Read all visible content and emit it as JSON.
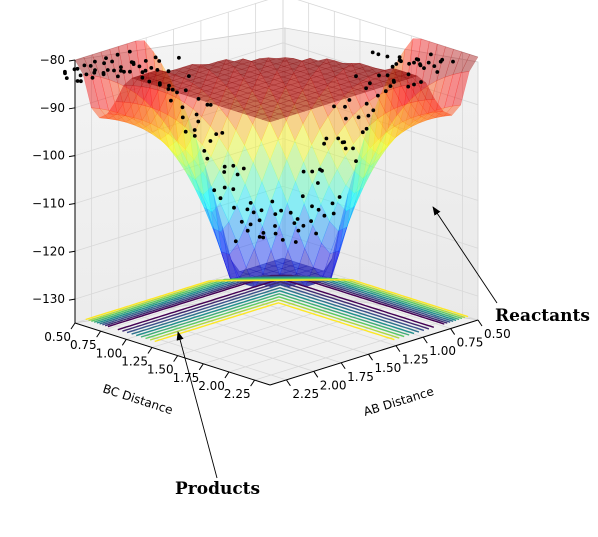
{
  "chart_data": {
    "type": "surface3d",
    "title": "",
    "xlabel": "AB Distance",
    "ylabel": "BC Distance",
    "zlabel": "",
    "x_ticks": [
      "0.50",
      "0.75",
      "1.00",
      "1.25",
      "1.50",
      "1.75",
      "2.00",
      "2.25"
    ],
    "y_ticks": [
      "0.50",
      "0.75",
      "1.00",
      "1.25",
      "1.50",
      "1.75",
      "2.00",
      "2.25"
    ],
    "z_ticks": [
      "−80",
      "−90",
      "−100",
      "−110",
      "−120",
      "−130"
    ],
    "xlim": [
      0.5,
      2.4
    ],
    "ylim": [
      0.5,
      2.4
    ],
    "zlim": [
      -135,
      -80
    ],
    "grid": true,
    "surface_colormap": "jet",
    "contour_colormap": "viridis",
    "annotations": [
      {
        "text": "Reactants",
        "target": "reactant-valley"
      },
      {
        "text": "Products",
        "target": "product-valley"
      }
    ],
    "trajectory_color": "#000000"
  }
}
